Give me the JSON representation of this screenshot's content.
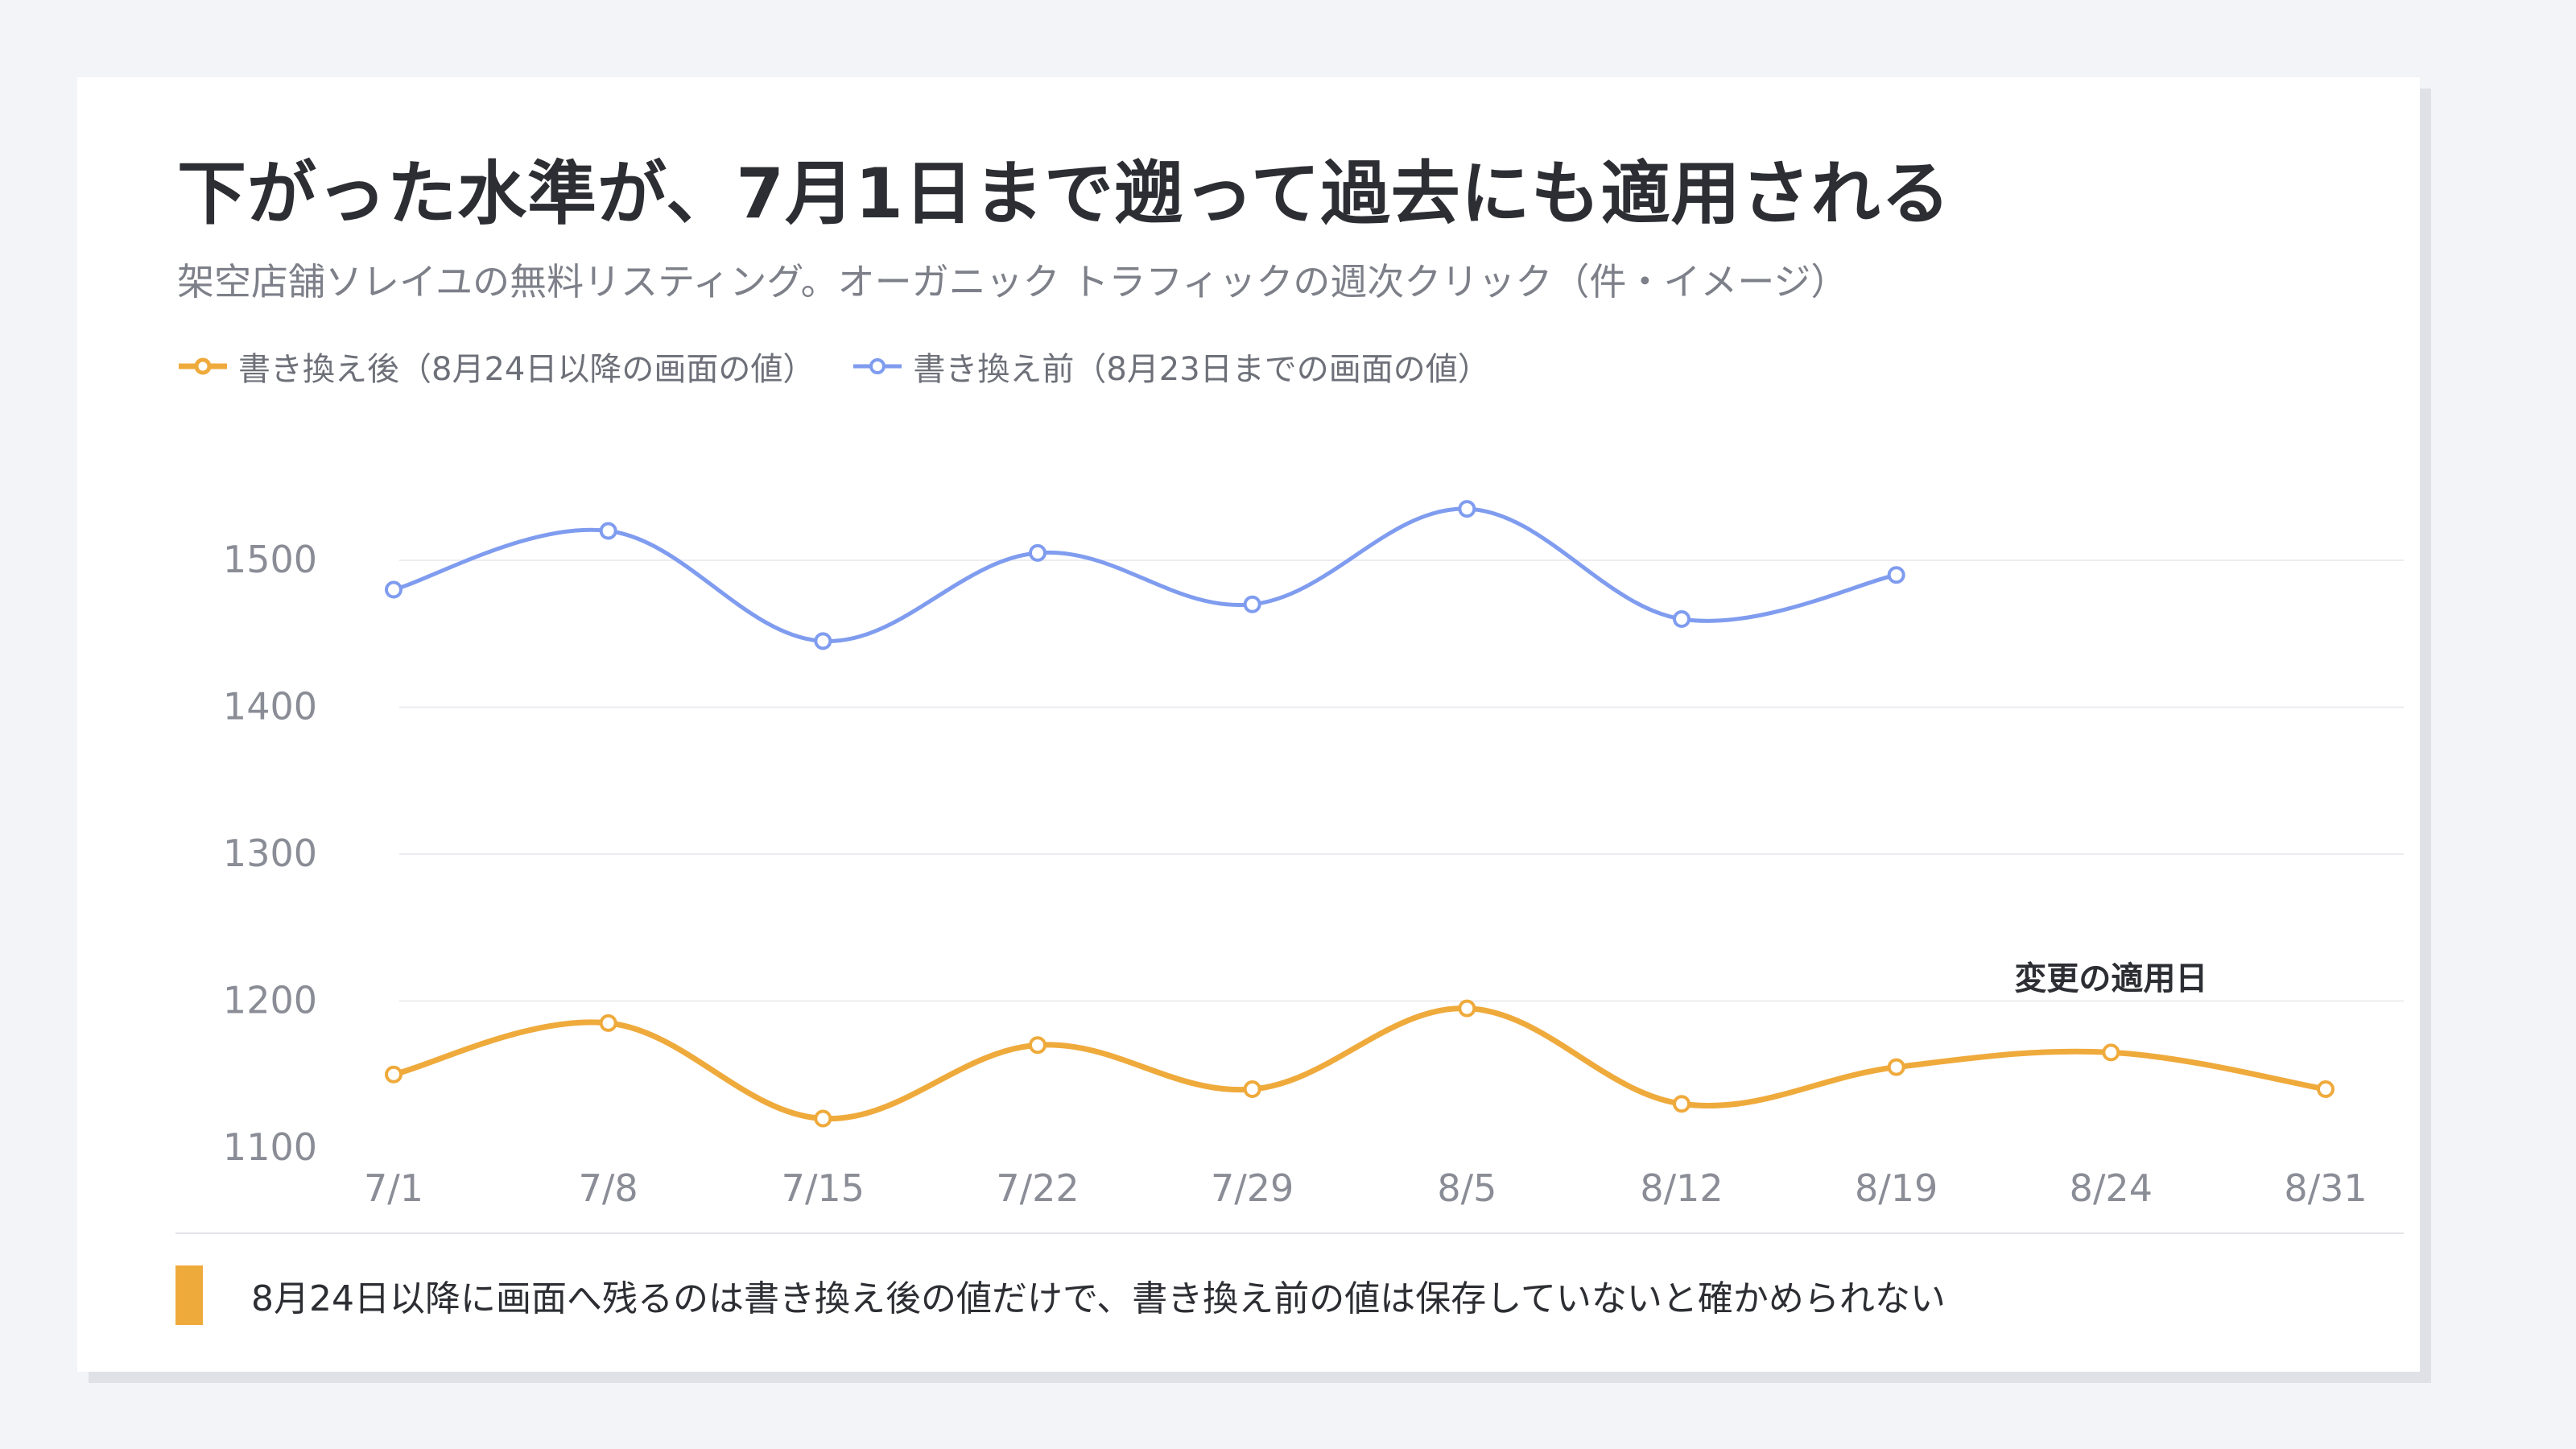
{
  "title": "下がった水準が、7月1日まで遡って過去にも適用される",
  "subtitle": "架空店舗ソレイユの無料リスティング。オーガニック トラフィックの週次クリック（件・イメージ）",
  "footnote": "8月24日以降に画面へ残るのは書き換え後の値だけで、書き換え前の値は保存していないと確かめられない",
  "chart_data": {
    "type": "line",
    "categories": [
      "7/1",
      "7/8",
      "7/15",
      "7/22",
      "7/29",
      "8/5",
      "8/12",
      "8/19",
      "8/24",
      "8/31"
    ],
    "series": [
      {
        "name": "書き換え後（8月24日以降の画面の値）",
        "color": "#efaa3c",
        "values": [
          1150,
          1185,
          1120,
          1170,
          1140,
          1195,
          1130,
          1155,
          1165,
          1140
        ]
      },
      {
        "name": "書き換え前（8月23日までの画面の値）",
        "color": "#7f9cef",
        "values": [
          1480,
          1520,
          1445,
          1505,
          1470,
          1535,
          1460,
          1490,
          null,
          null
        ]
      }
    ],
    "yticks": [
      1100,
      1200,
      1300,
      1400,
      1500
    ],
    "ylim": [
      1100,
      1500
    ],
    "grid": true,
    "legend": "top-left",
    "annotation": {
      "text": "変更の適用日",
      "category": "8/24"
    }
  }
}
